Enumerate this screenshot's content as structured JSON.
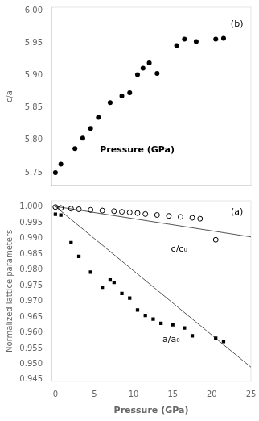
{
  "chart_data": [
    {
      "type": "scatter",
      "ylabel": "c/a",
      "annotations": [
        "Pressure (GPa)",
        "(b)"
      ],
      "series": [
        {
          "type": "scatter",
          "color": "#000000",
          "marker": "circle",
          "x": [
            0.0,
            0.7,
            2.5,
            3.5,
            4.5,
            5.5,
            7.0,
            8.5,
            9.5,
            10.5,
            11.2,
            12.0,
            13.0,
            15.5,
            16.5,
            18.0,
            20.5,
            21.5
          ],
          "values": [
            5.75,
            5.763,
            5.787,
            5.803,
            5.818,
            5.835,
            5.858,
            5.868,
            5.873,
            5.901,
            5.911,
            5.919,
            5.903,
            5.946,
            5.956,
            5.952,
            5.956,
            5.957
          ]
        }
      ],
      "xlim": [
        -0.5,
        25
      ],
      "ylim": [
        5.73,
        6.005
      ],
      "xticks": [
        0,
        5,
        10,
        15,
        20,
        25
      ],
      "yticks": [
        5.75,
        {
          "value": 5.8,
          "label": "5.80"
        },
        5.85,
        {
          "value": 5.9,
          "label": "5.90"
        },
        5.95,
        {
          "value": 6.0,
          "label": "6.00"
        }
      ],
      "grid": false,
      "tick_labels": "y"
    },
    {
      "type": "scatter",
      "xlabel": "Pressure (GPa)",
      "ylabel": "Normalized lattice parameters",
      "annotations": [
        "c/c₀",
        "a/a₀",
        "(a)"
      ],
      "series": [
        {
          "type": "line",
          "color": "#555555",
          "line_style": "solid",
          "x": [
            0.0,
            25.0
          ],
          "values": [
            1.0002,
            0.9905
          ]
        },
        {
          "type": "line",
          "color": "#555555",
          "line_style": "solid",
          "x": [
            0.0,
            25.0
          ],
          "values": [
            1.0002,
            0.949
          ]
        },
        {
          "type": "scatter",
          "color": "#000000",
          "marker": "open_circle",
          "x": [
            0.0,
            0.7,
            2.0,
            3.0,
            4.5,
            6.0,
            7.5,
            8.5,
            9.5,
            10.5,
            11.5,
            13.0,
            14.5,
            16.0,
            17.5,
            18.5
          ],
          "values": [
            1.0,
            0.9997,
            0.9995,
            0.9993,
            0.9991,
            0.9989,
            0.9987,
            0.9985,
            0.9983,
            0.9981,
            0.9978,
            0.9975,
            0.9972,
            0.9969,
            0.9966,
            0.9963
          ]
        },
        {
          "type": "scatter",
          "color": "#000000",
          "marker": "open_circle",
          "x": [
            20.5
          ],
          "values": [
            0.9896
          ]
        },
        {
          "type": "scatter",
          "color": "#000000",
          "marker": "square",
          "x": [
            0.0,
            0.7,
            2.0,
            3.0,
            4.5,
            6.0,
            7.0,
            7.5,
            8.5,
            9.5,
            10.5,
            11.5,
            12.5,
            13.5,
            15.0,
            16.5,
            17.5,
            20.5,
            21.5
          ],
          "values": [
            0.9977,
            0.9975,
            0.9887,
            0.9843,
            0.9793,
            0.9745,
            0.9768,
            0.976,
            0.9725,
            0.971,
            0.9672,
            0.9655,
            0.9643,
            0.963,
            0.9625,
            0.9615,
            0.959,
            0.9582,
            0.9572
          ]
        }
      ],
      "xlim": [
        -0.5,
        25
      ],
      "ylim": [
        0.9445,
        1.002
      ],
      "xticks": [
        0,
        5,
        10,
        15,
        20,
        25
      ],
      "yticks": [
        0.945,
        {
          "value": 0.95,
          "label": "0.950"
        },
        0.955,
        {
          "value": 0.96,
          "label": "0.960"
        },
        0.965,
        {
          "value": 0.97,
          "label": "0.970"
        },
        0.975,
        {
          "value": 0.98,
          "label": "0.980"
        },
        0.985,
        {
          "value": 0.99,
          "label": "0.990"
        },
        0.995,
        {
          "value": 1.0,
          "label": "1.000"
        }
      ],
      "grid": false
    }
  ]
}
